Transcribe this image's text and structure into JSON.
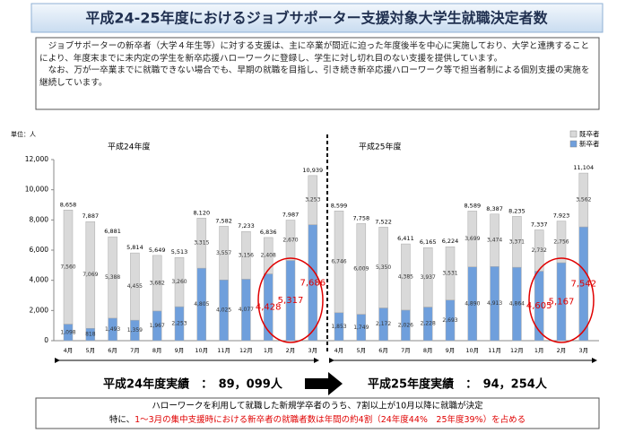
{
  "header": {
    "title": "平成24-25年度におけるジョブサポーター支援対象大学生就職決定者数"
  },
  "description": [
    "　ジョブサポーターの新卒者（大学４年生等）に対する支援は、主に卒業が間近に迫った年度後半を中心に実施しており、大学と連携することにより、年度末までに未内定の学生を新卒応援ハローワークに登録し、学生に対し切れ目のない支援を提供しています。",
    "　なお、万が一卒業までに就職できない場合でも、早期の就職を目指し、引き続き新卒応援ハローワーク等で担当者制による個別支援の実施を継続しています。"
  ],
  "chart_data": {
    "type": "bar",
    "stacked": true,
    "unit_label": "単位：人",
    "period_labels": [
      "平成24年度",
      "平成25年度"
    ],
    "categories": [
      "4月",
      "5月",
      "6月",
      "7月",
      "8月",
      "9月",
      "10月",
      "11月",
      "12月",
      "1月",
      "2月",
      "3月",
      "4月",
      "5月",
      "6月",
      "7月",
      "8月",
      "9月",
      "10月",
      "11月",
      "12月",
      "1月",
      "2月",
      "3月"
    ],
    "series": [
      {
        "name": "新卒者",
        "color": "#6f9fdc",
        "values": [
          1098,
          818,
          1493,
          1359,
          1967,
          2253,
          4805,
          4025,
          4077,
          4428,
          5317,
          7686,
          1853,
          1749,
          2172,
          2026,
          2228,
          2693,
          4890,
          4913,
          4864,
          4605,
          5167,
          7542
        ],
        "value_labels": [
          "1,098",
          "818",
          "1,493",
          "1,359",
          "1,967",
          "2,253",
          "4,805",
          "4,025",
          "4,077",
          "4,428",
          "5,317",
          "7,686",
          "1,853",
          "1,749",
          "2,172",
          "2,026",
          "2,228",
          "2,693",
          "4,890",
          "4,913",
          "4,864",
          "4,605",
          "5,167",
          "7,542"
        ]
      },
      {
        "name": "既卒者",
        "color": "#d9d9d9",
        "values": [
          7560,
          7069,
          5388,
          4455,
          3682,
          3260,
          3315,
          3557,
          3156,
          2408,
          2670,
          3253,
          6746,
          6009,
          5350,
          4385,
          3937,
          3531,
          3699,
          3474,
          3371,
          2732,
          2756,
          3562
        ],
        "value_labels": [
          "7,560",
          "7,069",
          "5,388",
          "4,455",
          "3,682",
          "3,260",
          "3,315",
          "3,557",
          "3,156",
          "2,408",
          "2,670",
          "3,253",
          "6,746",
          "6,009",
          "5,350",
          "4,385",
          "3,937",
          "3,531",
          "3,699",
          "3,474",
          "3,371",
          "2,732",
          "2,756",
          "3,562"
        ]
      }
    ],
    "totals": [
      8658,
      7887,
      6881,
      5814,
      5649,
      5513,
      8120,
      7582,
      7233,
      6836,
      7987,
      10939,
      8599,
      7758,
      7522,
      6411,
      6165,
      6224,
      8589,
      8387,
      8235,
      7337,
      7923,
      11104
    ],
    "total_labels": [
      "8,658",
      "7,887",
      "6,881",
      "5,814",
      "5,649",
      "5,513",
      "8,120",
      "7,582",
      "7,233",
      "6,836",
      "7,987",
      "10,939",
      "8,599",
      "7,758",
      "7,522",
      "6,411",
      "6,165",
      "6,224",
      "8,589",
      "8,387",
      "8,235",
      "7,337",
      "7,923",
      "11,104"
    ],
    "ylim": [
      0,
      12000
    ],
    "yticks": [
      0,
      {
        "value": 2000,
        "label": "2,000"
      },
      {
        "value": 4000,
        "label": "4,000"
      },
      {
        "value": 6000,
        "label": "6,000"
      },
      {
        "value": 8000,
        "label": "8,000"
      },
      {
        "value": 10000,
        "label": "10,000"
      },
      {
        "value": 12000,
        "label": "12,000"
      }
    ],
    "grid": false
  },
  "results": [
    "平成24年度実績　：　89，099人",
    "平成25年度実績　：　94，254人"
  ],
  "footer": {
    "line1": "ハローワークを利用して就職した新規学卒者のうち、7割以上が10月以降に就職が決定",
    "line2_prefix": "特に、",
    "line2_highlight": "1～3月の集中支援時における新卒者の就職者数は年間の約4割（24年度44%　25年度39%）を占める"
  }
}
